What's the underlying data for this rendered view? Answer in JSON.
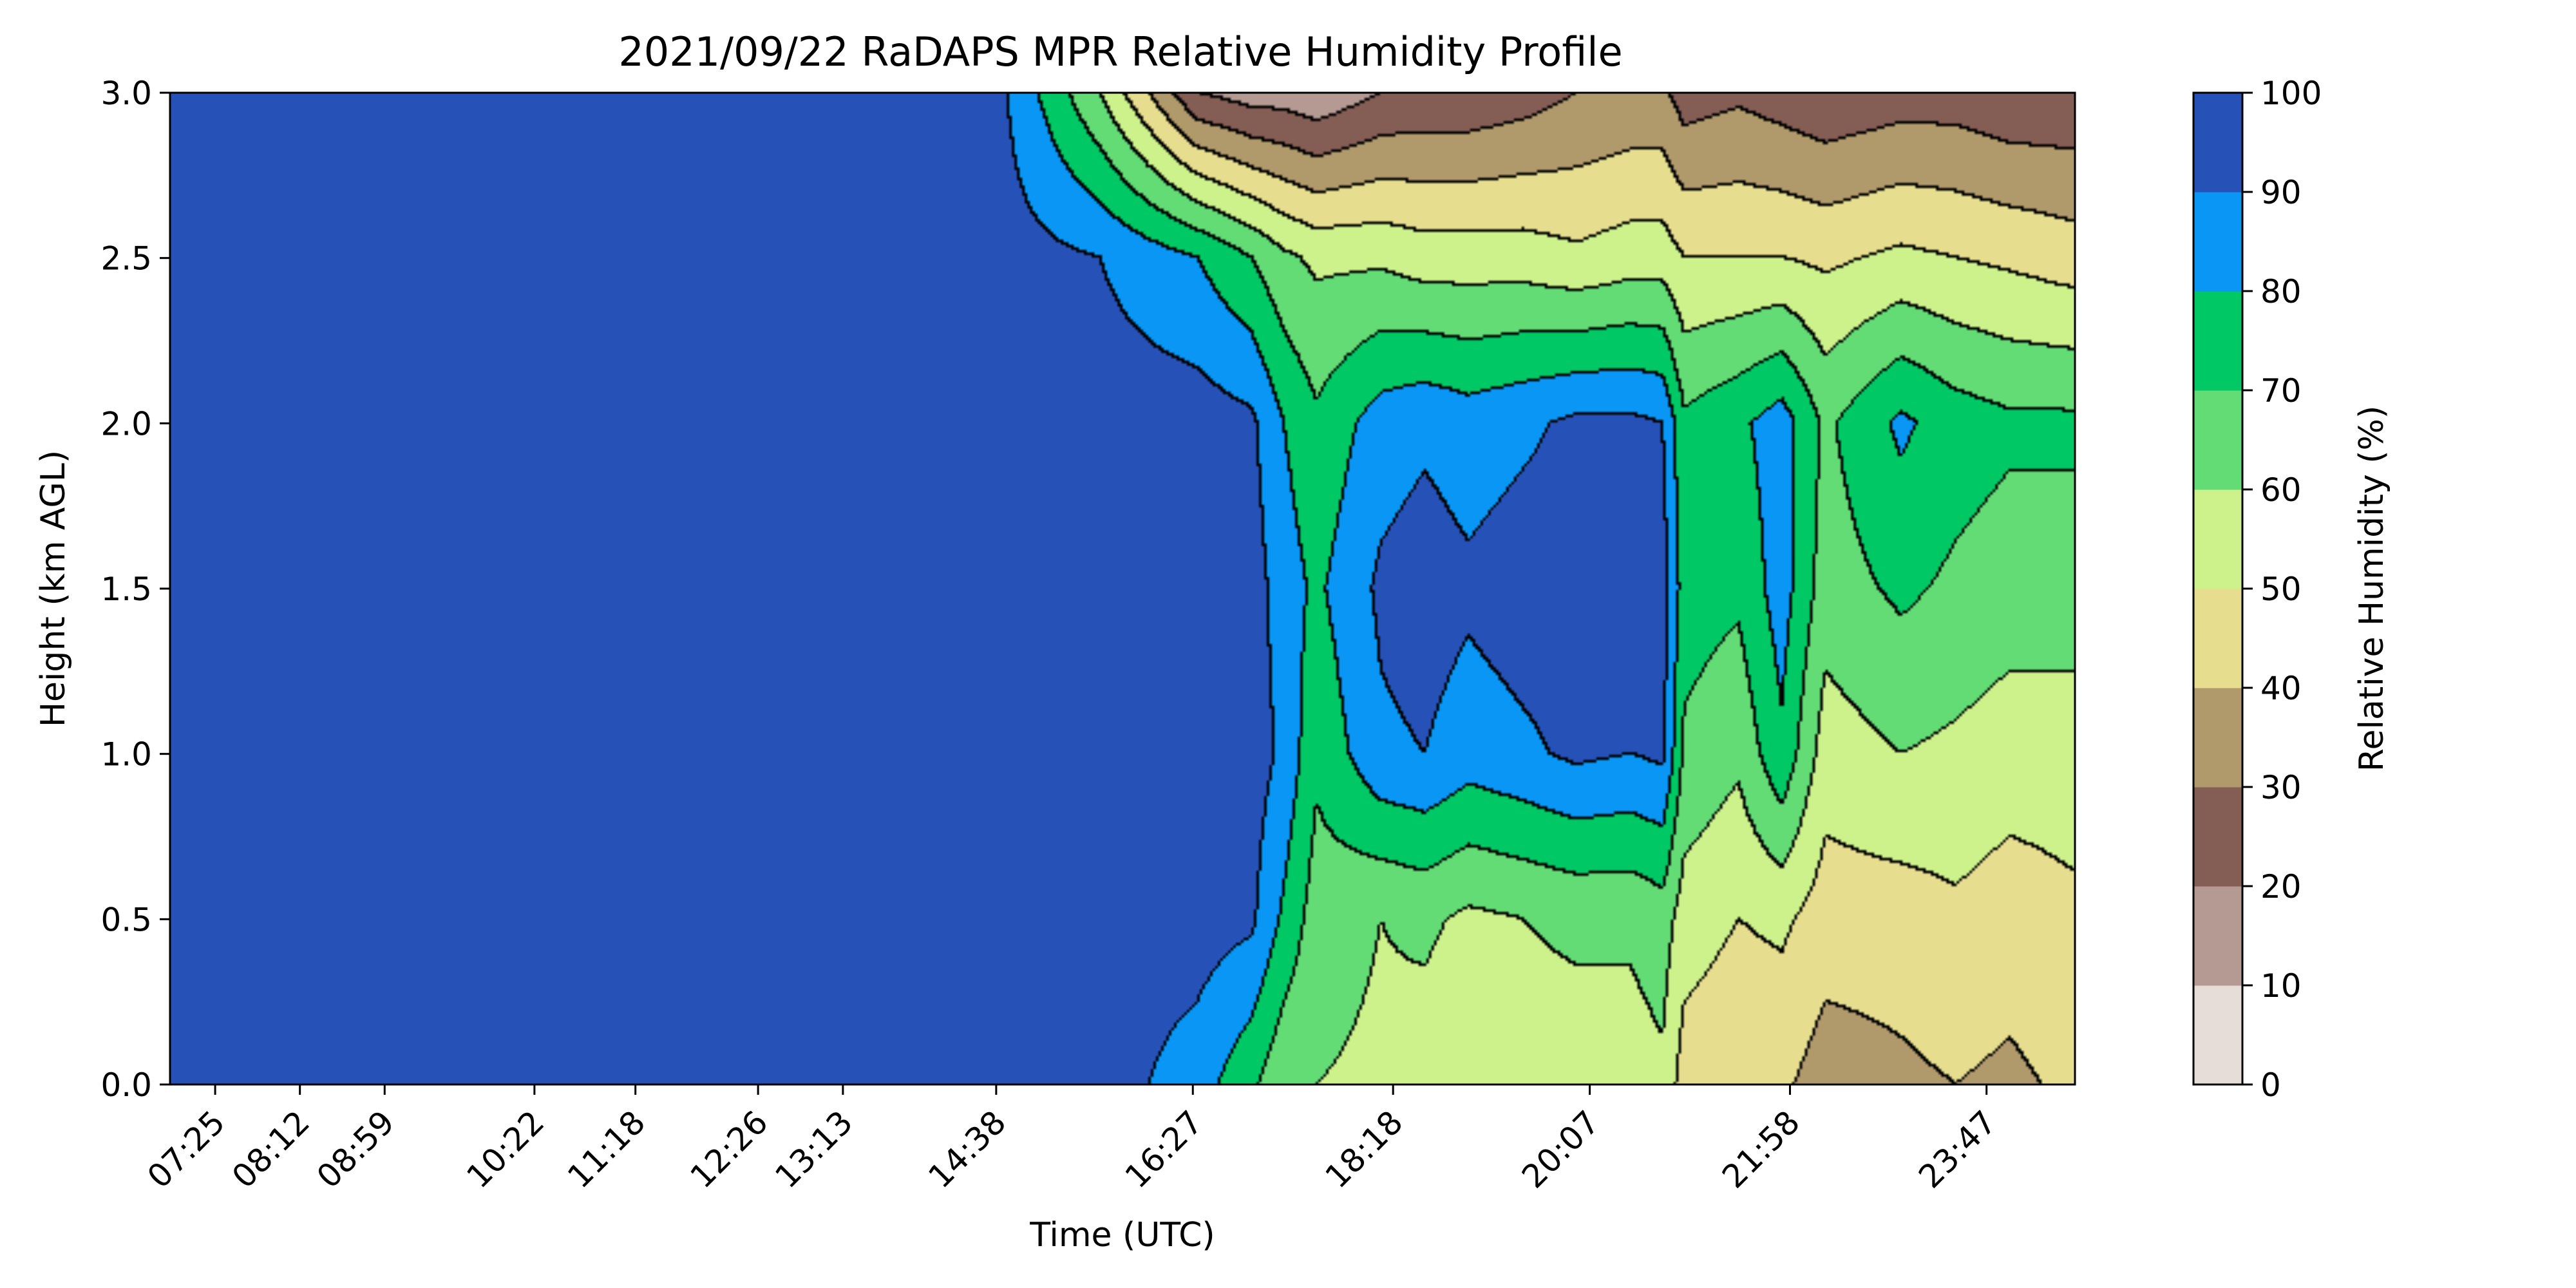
{
  "chart_data": {
    "type": "heatmap",
    "title": "2021/09/22 RaDAPS MPR Relative Humidity Profile",
    "xlabel": "Time (UTC)",
    "ylabel": "Height (km AGL)",
    "colorbar_label": "Relative Humidity (%)",
    "x_tick_labels": [
      "07:25",
      "08:12",
      "08:59",
      "10:22",
      "11:18",
      "12:26",
      "13:13",
      "14:38",
      "16:27",
      "18:18",
      "20:07",
      "21:58",
      "23:47"
    ],
    "x_tick_hours": [
      7.417,
      8.2,
      8.983,
      10.367,
      11.3,
      12.433,
      13.217,
      14.633,
      16.45,
      18.3,
      20.117,
      21.967,
      23.783
    ],
    "x_range_hours": [
      7.0,
      24.6
    ],
    "ylim": [
      0.0,
      3.0
    ],
    "y_ticks": [
      "0.0",
      "0.5",
      "1.0",
      "1.5",
      "2.0",
      "2.5",
      "3.0"
    ],
    "y_tick_values": [
      0.0,
      0.5,
      1.0,
      1.5,
      2.0,
      2.5,
      3.0
    ],
    "levels": [
      0,
      10,
      20,
      30,
      40,
      50,
      60,
      70,
      80,
      90,
      100
    ],
    "level_labels": [
      "0",
      "10",
      "20",
      "30",
      "40",
      "50",
      "60",
      "70",
      "80",
      "90",
      "100"
    ],
    "colors": [
      "#e6dcd8",
      "#b49a93",
      "#845d55",
      "#b09a6c",
      "#e6de8e",
      "#cdf28c",
      "#64dc76",
      "#00c864",
      "#0996f4",
      "#2652b8"
    ],
    "contour_color": "#000000",
    "humidity_profile": [
      {
        "time": 7.0,
        "rh": [
          95,
          95,
          95,
          95,
          95,
          95,
          95
        ]
      },
      {
        "time": 14.6,
        "rh": [
          95,
          95,
          95,
          95,
          95,
          95,
          95
        ]
      },
      {
        "time": 15.6,
        "rh": [
          95,
          95,
          95,
          95,
          95,
          90,
          60
        ]
      },
      {
        "time": 16.5,
        "rh": [
          85,
          95,
          95,
          95,
          95,
          80,
          20
        ]
      },
      {
        "time": 17.0,
        "rh": [
          72,
          92,
          95,
          95,
          92,
          70,
          15
        ]
      },
      {
        "time": 17.3,
        "rh": [
          62,
          78,
          88,
          85,
          80,
          62,
          15
        ]
      },
      {
        "time": 17.6,
        "rh": [
          60,
          65,
          72,
          78,
          72,
          58,
          12
        ]
      },
      {
        "time": 18.2,
        "rh": [
          58,
          60,
          88,
          92,
          85,
          58,
          20
        ]
      },
      {
        "time": 18.6,
        "rh": [
          55,
          62,
          90,
          95,
          88,
          55,
          22
        ]
      },
      {
        "time": 19.0,
        "rh": [
          52,
          58,
          85,
          92,
          85,
          55,
          22
        ]
      },
      {
        "time": 19.5,
        "rh": [
          55,
          60,
          88,
          95,
          88,
          55,
          25
        ]
      },
      {
        "time": 20.0,
        "rh": [
          55,
          62,
          92,
          95,
          92,
          52,
          30
        ]
      },
      {
        "time": 20.5,
        "rh": [
          55,
          62,
          90,
          95,
          92,
          55,
          32
        ]
      },
      {
        "time": 20.8,
        "rh": [
          58,
          65,
          92,
          95,
          90,
          55,
          32
        ]
      },
      {
        "time": 21.0,
        "rh": [
          45,
          55,
          68,
          75,
          72,
          50,
          25
        ]
      },
      {
        "time": 21.5,
        "rh": [
          42,
          50,
          62,
          72,
          78,
          50,
          28
        ]
      },
      {
        "time": 21.9,
        "rh": [
          42,
          52,
          78,
          85,
          85,
          50,
          25
        ]
      },
      {
        "time": 22.3,
        "rh": [
          35,
          45,
          55,
          65,
          68,
          48,
          22
        ]
      },
      {
        "time": 23.0,
        "rh": [
          38,
          45,
          60,
          72,
          82,
          52,
          25
        ]
      },
      {
        "time": 23.5,
        "rh": [
          40,
          48,
          58,
          68,
          75,
          50,
          25
        ]
      },
      {
        "time": 24.0,
        "rh": [
          38,
          45,
          55,
          65,
          72,
          48,
          22
        ]
      },
      {
        "time": 24.6,
        "rh": [
          42,
          48,
          55,
          65,
          72,
          45,
          22
        ]
      }
    ],
    "profile_heights_km": [
      0.0,
      0.5,
      1.0,
      1.5,
      2.0,
      2.5,
      3.0
    ]
  }
}
